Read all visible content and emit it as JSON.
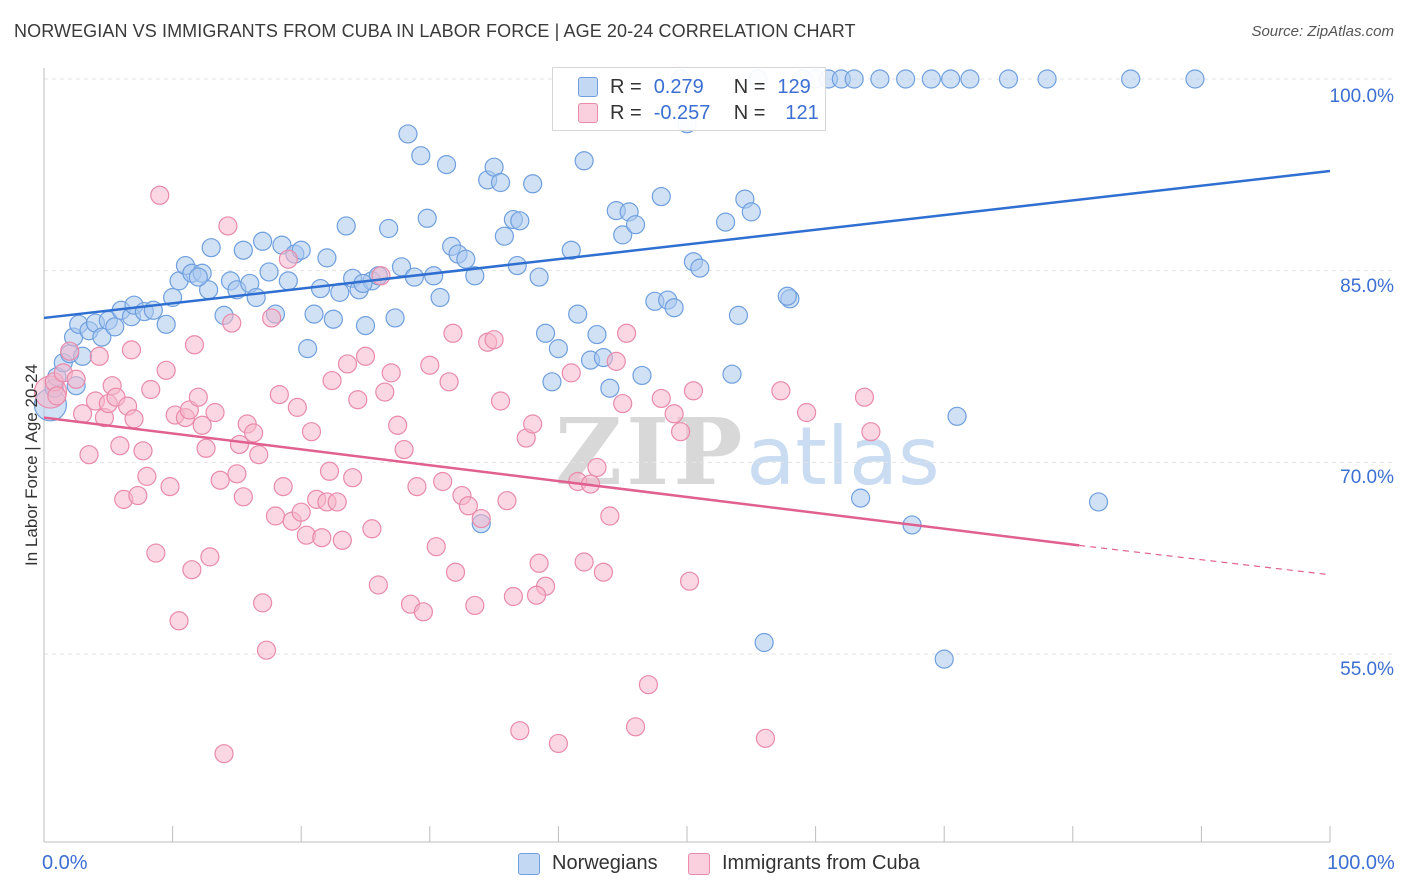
{
  "header": {
    "title": "NORWEGIAN VS IMMIGRANTS FROM CUBA IN LABOR FORCE | AGE 20-24 CORRELATION CHART",
    "source": "Source: ZipAtlas.com"
  },
  "watermark": {
    "zip": "ZIP",
    "atlas": "atlas"
  },
  "legend": {
    "rows": [
      {
        "r_label": "R =",
        "r_value": "0.279",
        "n_label": "N =",
        "n_value": "129",
        "color": "#a9c8ef"
      },
      {
        "r_label": "R =",
        "r_value": "-0.257",
        "n_label": "N =",
        "n_value": "121",
        "color": "#f5b7cb"
      }
    ]
  },
  "bottom_legend": {
    "series1": "Norwegians",
    "series2": "Immigrants from Cuba"
  },
  "chart_data": {
    "type": "scatter",
    "title": "NORWEGIAN VS IMMIGRANTS FROM CUBA IN LABOR FORCE | AGE 20-24 CORRELATION CHART",
    "ylabel": "In Labor Force | Age 20-24",
    "xlabel": "",
    "xlim": [
      0,
      100
    ],
    "ylim": [
      40,
      100
    ],
    "x_tick_labels": [
      "0.0%",
      "100.0%"
    ],
    "y_tick_labels": [
      {
        "value": 55,
        "label": "55.0%"
      },
      {
        "value": 70,
        "label": "70.0%"
      },
      {
        "value": 85,
        "label": "85.0%"
      },
      {
        "value": 100,
        "label": "100.0%"
      }
    ],
    "grid": true,
    "legend_position": "top-center",
    "series": [
      {
        "name": "Norwegians",
        "color": "#6f9fde",
        "fill": "#a9c8ef",
        "trend": {
          "x": [
            0,
            100
          ],
          "y": [
            81.3,
            92.8
          ],
          "style": "solid",
          "color": "#2f6fd1"
        },
        "points": [
          [
            0.5,
            74.5
          ],
          [
            0.8,
            75.8
          ],
          [
            1.0,
            76.7
          ],
          [
            1.5,
            77.8
          ],
          [
            2.0,
            78.5
          ],
          [
            2.3,
            79.8
          ],
          [
            2.7,
            80.8
          ],
          [
            3.5,
            80.3
          ],
          [
            4.0,
            80.9
          ],
          [
            4.5,
            79.8
          ],
          [
            5.0,
            81.1
          ],
          [
            5.5,
            80.6
          ],
          [
            6.0,
            81.9
          ],
          [
            6.8,
            81.4
          ],
          [
            7.0,
            82.3
          ],
          [
            7.8,
            81.8
          ],
          [
            8.5,
            81.9
          ],
          [
            9.5,
            80.8
          ],
          [
            10.0,
            82.9
          ],
          [
            10.5,
            84.2
          ],
          [
            11.0,
            85.4
          ],
          [
            11.5,
            84.8
          ],
          [
            12.3,
            84.8
          ],
          [
            12.8,
            83.5
          ],
          [
            13.0,
            86.8
          ],
          [
            14.0,
            81.5
          ],
          [
            14.5,
            84.2
          ],
          [
            15.0,
            83.5
          ],
          [
            15.5,
            86.6
          ],
          [
            16.0,
            84.0
          ],
          [
            16.5,
            82.9
          ],
          [
            17.0,
            87.3
          ],
          [
            17.5,
            84.9
          ],
          [
            18.0,
            81.6
          ],
          [
            18.5,
            87.0
          ],
          [
            19.0,
            84.2
          ],
          [
            19.5,
            86.3
          ],
          [
            20.0,
            86.6
          ],
          [
            20.5,
            78.9
          ],
          [
            21.0,
            81.6
          ],
          [
            21.5,
            83.6
          ],
          [
            22.0,
            86.0
          ],
          [
            22.5,
            81.2
          ],
          [
            23.0,
            83.3
          ],
          [
            23.5,
            88.5
          ],
          [
            24.0,
            84.4
          ],
          [
            24.5,
            83.5
          ],
          [
            25.0,
            80.7
          ],
          [
            25.5,
            84.2
          ],
          [
            26.0,
            84.6
          ],
          [
            26.8,
            88.3
          ],
          [
            27.3,
            81.3
          ],
          [
            27.8,
            85.3
          ],
          [
            28.3,
            95.7
          ],
          [
            28.8,
            84.5
          ],
          [
            29.3,
            94.0
          ],
          [
            29.8,
            89.1
          ],
          [
            30.3,
            84.6
          ],
          [
            30.8,
            82.9
          ],
          [
            31.3,
            93.3
          ],
          [
            31.7,
            86.9
          ],
          [
            32.2,
            86.3
          ],
          [
            32.8,
            85.9
          ],
          [
            33.5,
            84.6
          ],
          [
            34.0,
            65.2
          ],
          [
            34.5,
            92.1
          ],
          [
            35.0,
            93.1
          ],
          [
            35.5,
            91.9
          ],
          [
            35.8,
            87.7
          ],
          [
            36.5,
            89.0
          ],
          [
            37.0,
            88.9
          ],
          [
            38.0,
            91.8
          ],
          [
            38.5,
            84.5
          ],
          [
            39.0,
            80.1
          ],
          [
            39.5,
            76.3
          ],
          [
            40.0,
            78.9
          ],
          [
            41.0,
            86.6
          ],
          [
            41.5,
            81.6
          ],
          [
            42.0,
            93.6
          ],
          [
            42.5,
            78.0
          ],
          [
            43.0,
            80.0
          ],
          [
            43.5,
            78.2
          ],
          [
            44.0,
            75.8
          ],
          [
            44.5,
            89.7
          ],
          [
            45.0,
            87.8
          ],
          [
            45.5,
            89.6
          ],
          [
            46.0,
            88.6
          ],
          [
            46.5,
            76.8
          ],
          [
            47.5,
            82.6
          ],
          [
            48.0,
            90.8
          ],
          [
            48.5,
            82.7
          ],
          [
            49.0,
            82.1
          ],
          [
            49.5,
            100.0
          ],
          [
            50.0,
            96.5
          ],
          [
            50.5,
            85.7
          ],
          [
            51.0,
            85.2
          ],
          [
            53.0,
            88.8
          ],
          [
            53.5,
            76.9
          ],
          [
            54.0,
            81.5
          ],
          [
            54.5,
            90.6
          ],
          [
            55.0,
            89.6
          ],
          [
            55.5,
            100.0
          ],
          [
            56.0,
            55.9
          ],
          [
            58.0,
            82.8
          ],
          [
            59.0,
            100.0
          ],
          [
            60.0,
            100.0
          ],
          [
            61.0,
            100.0
          ],
          [
            62.0,
            100.0
          ],
          [
            63.0,
            100.0
          ],
          [
            63.5,
            67.2
          ],
          [
            65.0,
            100.0
          ],
          [
            67.0,
            100.0
          ],
          [
            67.5,
            65.1
          ],
          [
            69.0,
            100.0
          ],
          [
            70.0,
            54.6
          ],
          [
            71.0,
            73.6
          ],
          [
            72.0,
            100.0
          ],
          [
            75.0,
            100.0
          ],
          [
            78.0,
            100.0
          ],
          [
            82.0,
            66.9
          ],
          [
            84.5,
            100.0
          ],
          [
            89.5,
            100.0
          ],
          [
            70.5,
            100.0
          ],
          [
            2.5,
            76.0
          ],
          [
            3.0,
            78.3
          ],
          [
            12.0,
            84.5
          ],
          [
            24.8,
            84.0
          ],
          [
            36.8,
            85.4
          ],
          [
            57.8,
            83.0
          ]
        ]
      },
      {
        "name": "Immigrants from Cuba",
        "color": "#e98aab",
        "fill": "#f5b7cb",
        "trend": {
          "x": [
            0,
            80.5
          ],
          "y": [
            73.5,
            63.5
          ],
          "style": "solid",
          "color": "#e0608f",
          "dashed_extension": {
            "x": [
              80.5,
              100
            ],
            "y": [
              63.5,
              61.2
            ]
          }
        },
        "points": [
          [
            0.5,
            75.5
          ],
          [
            0.8,
            76.3
          ],
          [
            1.0,
            75.2
          ],
          [
            1.5,
            77.0
          ],
          [
            2.0,
            78.7
          ],
          [
            2.5,
            76.5
          ],
          [
            3.0,
            73.8
          ],
          [
            3.5,
            70.6
          ],
          [
            4.0,
            74.8
          ],
          [
            4.3,
            78.3
          ],
          [
            4.7,
            73.5
          ],
          [
            5.0,
            74.6
          ],
          [
            5.3,
            76.0
          ],
          [
            5.6,
            75.1
          ],
          [
            5.9,
            71.3
          ],
          [
            6.2,
            67.1
          ],
          [
            6.5,
            74.4
          ],
          [
            6.8,
            78.8
          ],
          [
            7.0,
            73.4
          ],
          [
            7.3,
            67.4
          ],
          [
            7.7,
            70.9
          ],
          [
            8.0,
            68.9
          ],
          [
            8.3,
            75.7
          ],
          [
            8.7,
            62.9
          ],
          [
            9.0,
            90.9
          ],
          [
            9.5,
            77.2
          ],
          [
            9.8,
            68.1
          ],
          [
            10.2,
            73.7
          ],
          [
            10.5,
            57.6
          ],
          [
            11.0,
            73.5
          ],
          [
            11.3,
            74.1
          ],
          [
            11.7,
            79.2
          ],
          [
            12.0,
            75.1
          ],
          [
            12.3,
            72.9
          ],
          [
            12.6,
            71.1
          ],
          [
            12.9,
            62.6
          ],
          [
            13.3,
            73.9
          ],
          [
            13.7,
            68.6
          ],
          [
            14.0,
            47.2
          ],
          [
            14.3,
            88.5
          ],
          [
            14.6,
            80.9
          ],
          [
            15.0,
            69.1
          ],
          [
            15.5,
            67.3
          ],
          [
            15.8,
            73.0
          ],
          [
            16.3,
            72.3
          ],
          [
            16.7,
            70.6
          ],
          [
            17.0,
            59.0
          ],
          [
            17.3,
            55.3
          ],
          [
            17.7,
            81.3
          ],
          [
            18.0,
            65.8
          ],
          [
            18.3,
            75.3
          ],
          [
            18.6,
            68.1
          ],
          [
            19.0,
            85.9
          ],
          [
            19.3,
            65.4
          ],
          [
            19.7,
            74.3
          ],
          [
            20.0,
            66.1
          ],
          [
            20.4,
            64.3
          ],
          [
            20.8,
            72.4
          ],
          [
            21.2,
            67.1
          ],
          [
            21.6,
            64.1
          ],
          [
            22.0,
            66.9
          ],
          [
            22.4,
            76.4
          ],
          [
            22.8,
            66.9
          ],
          [
            23.2,
            63.9
          ],
          [
            23.6,
            77.7
          ],
          [
            24.0,
            68.8
          ],
          [
            24.4,
            74.9
          ],
          [
            25.0,
            78.3
          ],
          [
            25.5,
            64.8
          ],
          [
            26.0,
            60.4
          ],
          [
            26.5,
            75.5
          ],
          [
            27.0,
            77.0
          ],
          [
            27.5,
            72.9
          ],
          [
            28.0,
            71.0
          ],
          [
            28.5,
            58.9
          ],
          [
            29.0,
            68.1
          ],
          [
            29.5,
            58.3
          ],
          [
            30.0,
            77.6
          ],
          [
            30.5,
            63.4
          ],
          [
            31.0,
            68.5
          ],
          [
            31.5,
            76.3
          ],
          [
            32.0,
            61.4
          ],
          [
            32.5,
            67.4
          ],
          [
            33.0,
            66.6
          ],
          [
            33.5,
            58.8
          ],
          [
            34.0,
            65.6
          ],
          [
            34.5,
            79.4
          ],
          [
            35.0,
            79.6
          ],
          [
            35.5,
            74.8
          ],
          [
            36.0,
            67.0
          ],
          [
            36.5,
            59.5
          ],
          [
            37.0,
            49.0
          ],
          [
            37.5,
            71.9
          ],
          [
            38.0,
            73.0
          ],
          [
            38.5,
            62.1
          ],
          [
            39.0,
            60.3
          ],
          [
            40.0,
            48.0
          ],
          [
            41.0,
            77.0
          ],
          [
            41.5,
            68.5
          ],
          [
            42.0,
            62.2
          ],
          [
            42.5,
            68.3
          ],
          [
            43.0,
            69.6
          ],
          [
            43.5,
            61.4
          ],
          [
            44.0,
            65.8
          ],
          [
            44.5,
            77.9
          ],
          [
            45.0,
            74.6
          ],
          [
            46.0,
            49.3
          ],
          [
            47.0,
            52.6
          ],
          [
            48.0,
            75.0
          ],
          [
            49.0,
            73.8
          ],
          [
            49.5,
            72.4
          ],
          [
            50.5,
            75.6
          ],
          [
            38.3,
            59.6
          ],
          [
            22.2,
            69.3
          ],
          [
            45.3,
            80.1
          ],
          [
            57.3,
            75.6
          ],
          [
            59.3,
            73.9
          ],
          [
            64.3,
            72.4
          ],
          [
            63.8,
            75.1
          ],
          [
            11.5,
            61.6
          ],
          [
            31.8,
            80.1
          ],
          [
            26.2,
            84.6
          ],
          [
            15.2,
            71.4
          ],
          [
            50.2,
            60.7
          ],
          [
            56.1,
            48.4
          ]
        ]
      }
    ]
  }
}
